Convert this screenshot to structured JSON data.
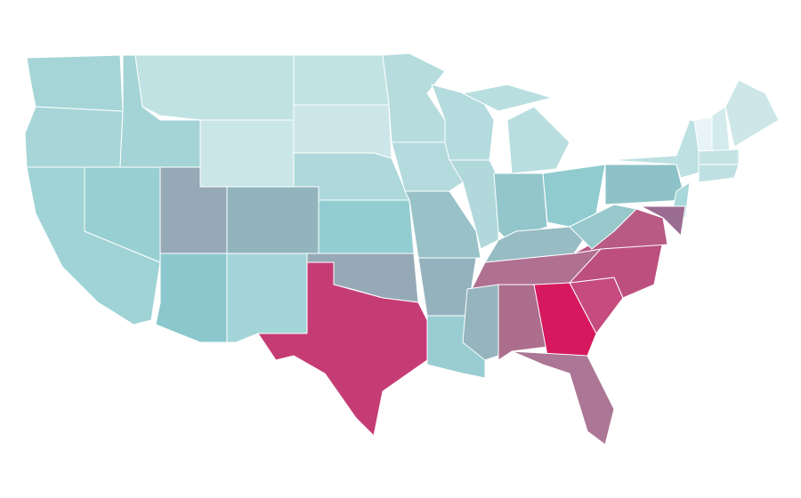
{
  "map": {
    "regions": [
      {
        "color": "#a5d5d7"
      },
      {
        "color": "#a8d6d8"
      },
      {
        "color": "#9fd3d6"
      },
      {
        "color": "#98cfd3"
      },
      {
        "color": "#a4d4d6"
      },
      {
        "color": "#c0e2e3"
      },
      {
        "color": "#cbe6e9"
      },
      {
        "color": "#95a9b6"
      },
      {
        "color": "#91b4bd"
      },
      {
        "color": "#8cc7cd"
      },
      {
        "color": "#a3d5d8"
      },
      {
        "color": "#c2e3e4"
      },
      {
        "color": "#cce6e9"
      },
      {
        "color": "#aed8db"
      },
      {
        "color": "#93cdd2"
      },
      {
        "color": "#96a9b6"
      },
      {
        "color": "#c53c75"
      },
      {
        "color": "#b6dcde"
      },
      {
        "color": "#b3dadd"
      },
      {
        "color": "#98c2c8"
      },
      {
        "color": "#93b2bd"
      },
      {
        "color": "#99cdd2"
      },
      {
        "color": "#b4dbde"
      },
      {
        "color": "#b1d9dc"
      },
      {
        "color": "#b9dee0"
      },
      {
        "color": "#b9dee0"
      },
      {
        "color": "#92c6cb"
      },
      {
        "color": "#8fcbcf"
      },
      {
        "color": "#98bcc4"
      },
      {
        "color": "#b07092"
      },
      {
        "color": "#95b4be"
      },
      {
        "color": "#ad6e8e"
      },
      {
        "color": "#d6195e"
      },
      {
        "color": "#ac7696"
      },
      {
        "color": "#c64b7e"
      },
      {
        "color": "#bd4f7f"
      },
      {
        "color": "#b85a84"
      },
      {
        "color": "#96c8cc"
      },
      {
        "color": "#8dc2c8"
      },
      {
        "color": "#bde0e2"
      },
      {
        "color": "#a9d8da"
      },
      {
        "color": "#9b6c92"
      },
      {
        "color": "#e8f4f5"
      },
      {
        "color": "#d3ebec"
      },
      {
        "color": "#cde7e9"
      },
      {
        "color": "#c4e3e5"
      },
      {
        "color": "#bfe0e2"
      }
    ]
  }
}
